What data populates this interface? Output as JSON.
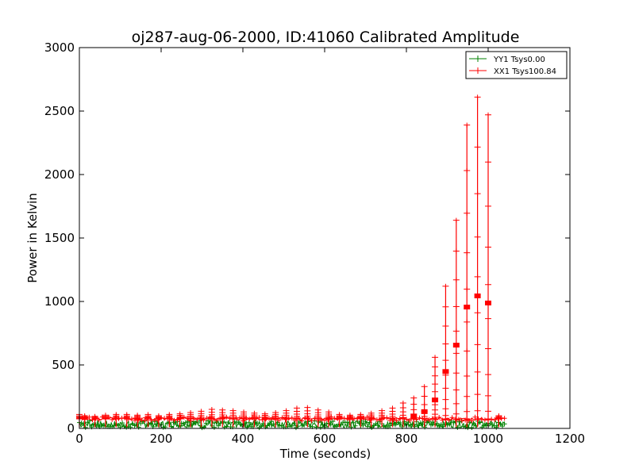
{
  "chart_data": {
    "type": "line",
    "title": "oj287-aug-06-2000, ID:41060 Calibrated Amplitude",
    "xlabel": "Time (seconds)",
    "ylabel": "Power in Kelvin",
    "xlim": [
      0,
      1200
    ],
    "ylim": [
      0,
      3000
    ],
    "xticks": [
      0,
      200,
      400,
      600,
      800,
      1000,
      1200
    ],
    "yticks": [
      0,
      500,
      1000,
      1500,
      2000,
      2500,
      3000
    ],
    "grid": false,
    "legend_placement": "top-right",
    "series": [
      {
        "name": "YY1 Tsys0.00",
        "color": "#008000",
        "marker": "plus",
        "x_start": 0,
        "x_end": 1040,
        "values_min": 5,
        "values_max": 60
      },
      {
        "name": "XX1 Tsys100.84",
        "color": "#ff0000",
        "marker": "plus",
        "x_start": 0,
        "x_end": 1040,
        "bursts": [
          {
            "x": 0,
            "peak": 110
          },
          {
            "x": 13,
            "peak": 100
          },
          {
            "x": 38,
            "peak": 95
          },
          {
            "x": 64,
            "peak": 105
          },
          {
            "x": 90,
            "peak": 110
          },
          {
            "x": 116,
            "peak": 110
          },
          {
            "x": 142,
            "peak": 105
          },
          {
            "x": 168,
            "peak": 110
          },
          {
            "x": 194,
            "peak": 100
          },
          {
            "x": 220,
            "peak": 110
          },
          {
            "x": 246,
            "peak": 115
          },
          {
            "x": 272,
            "peak": 125
          },
          {
            "x": 298,
            "peak": 135
          },
          {
            "x": 324,
            "peak": 150
          },
          {
            "x": 350,
            "peak": 145
          },
          {
            "x": 376,
            "peak": 140
          },
          {
            "x": 402,
            "peak": 130
          },
          {
            "x": 428,
            "peak": 120
          },
          {
            "x": 454,
            "peak": 115
          },
          {
            "x": 480,
            "peak": 125
          },
          {
            "x": 506,
            "peak": 140
          },
          {
            "x": 532,
            "peak": 160
          },
          {
            "x": 558,
            "peak": 165
          },
          {
            "x": 584,
            "peak": 145
          },
          {
            "x": 610,
            "peak": 130
          },
          {
            "x": 636,
            "peak": 110
          },
          {
            "x": 662,
            "peak": 105
          },
          {
            "x": 688,
            "peak": 110
          },
          {
            "x": 714,
            "peak": 120
          },
          {
            "x": 740,
            "peak": 140
          },
          {
            "x": 766,
            "peak": 160
          },
          {
            "x": 792,
            "peak": 200
          },
          {
            "x": 818,
            "peak": 240
          },
          {
            "x": 844,
            "peak": 330
          },
          {
            "x": 870,
            "peak": 560
          },
          {
            "x": 896,
            "peak": 1120
          },
          {
            "x": 922,
            "peak": 1640
          },
          {
            "x": 948,
            "peak": 2390
          },
          {
            "x": 974,
            "peak": 2610
          },
          {
            "x": 1000,
            "peak": 2470
          },
          {
            "x": 1026,
            "peak": 100
          }
        ],
        "baseline": 75
      }
    ]
  }
}
